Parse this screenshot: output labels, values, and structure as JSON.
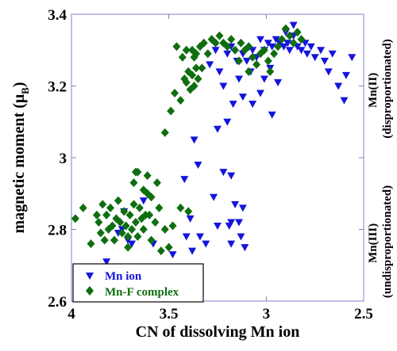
{
  "chart_data": {
    "type": "scatter",
    "xlabel": "CN of dissolving Mn ion",
    "ylabel_main": "magnetic moment (μ",
    "ylabel_sub": "B",
    "ylabel_close": ")",
    "xlim": [
      4,
      2.5
    ],
    "ylim": [
      2.6,
      3.4
    ],
    "x_reversed": true,
    "xticks": [
      "4",
      "3.5",
      "3",
      "2.5"
    ],
    "xtick_values": [
      4,
      3.5,
      3,
      2.5
    ],
    "yticks": [
      "2.6",
      "2.8",
      "3",
      "3.2",
      "3.4"
    ],
    "ytick_values": [
      2.6,
      2.8,
      3.0,
      3.2,
      3.4
    ],
    "grid": false,
    "legend_placement": "bottom-left",
    "side_labels": {
      "upper_line1": "Mn(II)",
      "upper_line2": "(disproportionated)",
      "lower_line1": "Mn(III)",
      "lower_line2": "(undisproportionated)"
    },
    "series": [
      {
        "name": "Mn ion",
        "color": "#1414dc",
        "marker": "triangle-down",
        "points": [
          [
            3.82,
            2.71
          ],
          [
            3.76,
            2.79
          ],
          [
            3.74,
            2.8
          ],
          [
            3.71,
            2.77
          ],
          [
            3.73,
            2.85
          ],
          [
            3.69,
            2.76
          ],
          [
            3.63,
            2.88
          ],
          [
            3.58,
            2.76
          ],
          [
            3.48,
            2.73
          ],
          [
            3.41,
            2.78
          ],
          [
            3.39,
            2.83
          ],
          [
            3.38,
            2.74
          ],
          [
            3.34,
            2.78
          ],
          [
            3.31,
            2.76
          ],
          [
            3.27,
            2.89
          ],
          [
            3.25,
            2.81
          ],
          [
            3.19,
            2.81
          ],
          [
            3.18,
            2.82
          ],
          [
            3.18,
            2.76
          ],
          [
            3.16,
            2.87
          ],
          [
            3.14,
            2.82
          ],
          [
            3.13,
            2.78
          ],
          [
            3.12,
            2.86
          ],
          [
            3.11,
            2.75
          ],
          [
            3.42,
            2.94
          ],
          [
            3.35,
            2.98
          ],
          [
            3.22,
            2.96
          ],
          [
            3.18,
            2.95
          ],
          [
            3.37,
            3.05
          ],
          [
            3.25,
            3.08
          ],
          [
            3.2,
            3.1
          ],
          [
            3.17,
            3.15
          ],
          [
            3.12,
            3.17
          ],
          [
            3.07,
            3.15
          ],
          [
            3.03,
            3.18
          ],
          [
            2.97,
            3.12
          ],
          [
            3.29,
            3.26
          ],
          [
            3.24,
            3.24
          ],
          [
            3.2,
            3.29
          ],
          [
            3.18,
            3.31
          ],
          [
            3.15,
            3.27
          ],
          [
            3.12,
            3.29
          ],
          [
            3.1,
            3.27
          ],
          [
            3.07,
            3.3
          ],
          [
            3.05,
            3.28
          ],
          [
            3.03,
            3.33
          ],
          [
            3.01,
            3.3
          ],
          [
            2.99,
            3.32
          ],
          [
            2.97,
            3.31
          ],
          [
            2.95,
            3.33
          ],
          [
            2.93,
            3.32
          ],
          [
            2.91,
            3.31
          ],
          [
            2.89,
            3.32
          ],
          [
            2.88,
            3.3
          ],
          [
            2.86,
            3.34
          ],
          [
            2.84,
            3.31
          ],
          [
            2.82,
            3.3
          ],
          [
            2.8,
            3.32
          ],
          [
            2.79,
            3.29
          ],
          [
            2.77,
            3.31
          ],
          [
            2.75,
            3.28
          ],
          [
            2.72,
            3.3
          ],
          [
            2.7,
            3.27
          ],
          [
            2.68,
            3.24
          ],
          [
            2.66,
            3.29
          ],
          [
            2.63,
            3.2
          ],
          [
            2.59,
            3.23
          ],
          [
            2.56,
            3.28
          ],
          [
            2.6,
            3.16
          ],
          [
            2.98,
            3.25
          ],
          [
            2.94,
            3.21
          ],
          [
            3.01,
            3.22
          ],
          [
            2.86,
            3.37
          ],
          [
            2.9,
            3.35
          ],
          [
            3.08,
            3.24
          ],
          [
            3.14,
            3.22
          ],
          [
            3.22,
            3.2
          ],
          [
            3.26,
            3.3
          ]
        ]
      },
      {
        "name": "Mn-F complex",
        "color": "#0f6e0f",
        "marker": "diamond",
        "points": [
          [
            3.98,
            2.83
          ],
          [
            3.94,
            2.86
          ],
          [
            3.9,
            2.76
          ],
          [
            3.87,
            2.84
          ],
          [
            3.86,
            2.82
          ],
          [
            3.85,
            2.79
          ],
          [
            3.84,
            2.87
          ],
          [
            3.83,
            2.77
          ],
          [
            3.82,
            2.84
          ],
          [
            3.81,
            2.8
          ],
          [
            3.8,
            2.86
          ],
          [
            3.79,
            2.81
          ],
          [
            3.78,
            2.77
          ],
          [
            3.77,
            2.83
          ],
          [
            3.76,
            2.88
          ],
          [
            3.75,
            2.82
          ],
          [
            3.74,
            2.79
          ],
          [
            3.73,
            2.85
          ],
          [
            3.72,
            2.81
          ],
          [
            3.71,
            2.75
          ],
          [
            3.7,
            2.84
          ],
          [
            3.69,
            2.8
          ],
          [
            3.68,
            2.87
          ],
          [
            3.67,
            2.82
          ],
          [
            3.66,
            2.78
          ],
          [
            3.65,
            2.86
          ],
          [
            3.64,
            2.83
          ],
          [
            3.63,
            2.8
          ],
          [
            3.62,
            2.84
          ],
          [
            3.61,
            2.9
          ],
          [
            3.6,
            2.84
          ],
          [
            3.59,
            2.77
          ],
          [
            3.57,
            2.82
          ],
          [
            3.55,
            2.86
          ],
          [
            3.54,
            2.74
          ],
          [
            3.52,
            2.8
          ],
          [
            3.68,
            2.93
          ],
          [
            3.66,
            2.96
          ],
          [
            3.63,
            2.91
          ],
          [
            3.61,
            2.95
          ],
          [
            3.59,
            2.89
          ],
          [
            3.56,
            2.93
          ],
          [
            3.67,
            2.96
          ],
          [
            3.71,
            2.78
          ],
          [
            3.5,
            2.75
          ],
          [
            3.48,
            2.81
          ],
          [
            3.44,
            2.86
          ],
          [
            3.4,
            2.85
          ],
          [
            3.52,
            3.07
          ],
          [
            3.49,
            3.13
          ],
          [
            3.47,
            3.18
          ],
          [
            3.44,
            3.16
          ],
          [
            3.42,
            3.22
          ],
          [
            3.41,
            3.21
          ],
          [
            3.4,
            3.24
          ],
          [
            3.39,
            3.19
          ],
          [
            3.38,
            3.23
          ],
          [
            3.37,
            3.2
          ],
          [
            3.36,
            3.25
          ],
          [
            3.35,
            3.22
          ],
          [
            3.46,
            3.31
          ],
          [
            3.43,
            3.28
          ],
          [
            3.41,
            3.3
          ],
          [
            3.38,
            3.3
          ],
          [
            3.36,
            3.29
          ],
          [
            3.34,
            3.31
          ],
          [
            3.32,
            3.32
          ],
          [
            3.3,
            3.29
          ],
          [
            3.28,
            3.33
          ],
          [
            3.26,
            3.32
          ],
          [
            3.24,
            3.34
          ],
          [
            3.22,
            3.32
          ],
          [
            3.2,
            3.31
          ],
          [
            3.18,
            3.33
          ],
          [
            3.16,
            3.3
          ],
          [
            3.13,
            3.32
          ],
          [
            3.11,
            3.3
          ],
          [
            3.09,
            3.31
          ],
          [
            3.07,
            3.28
          ],
          [
            3.05,
            3.26
          ],
          [
            3.03,
            3.29
          ],
          [
            3.01,
            3.3
          ],
          [
            2.99,
            3.27
          ],
          [
            2.96,
            3.29
          ],
          [
            2.94,
            3.31
          ],
          [
            2.92,
            3.33
          ],
          [
            2.9,
            3.36
          ],
          [
            2.88,
            3.34
          ],
          [
            2.86,
            3.32
          ],
          [
            2.84,
            3.35
          ],
          [
            2.82,
            3.33
          ],
          [
            3.14,
            3.27
          ],
          [
            3.09,
            3.24
          ],
          [
            2.98,
            3.24
          ],
          [
            3.33,
            3.25
          ],
          [
            3.37,
            3.28
          ]
        ]
      }
    ]
  }
}
